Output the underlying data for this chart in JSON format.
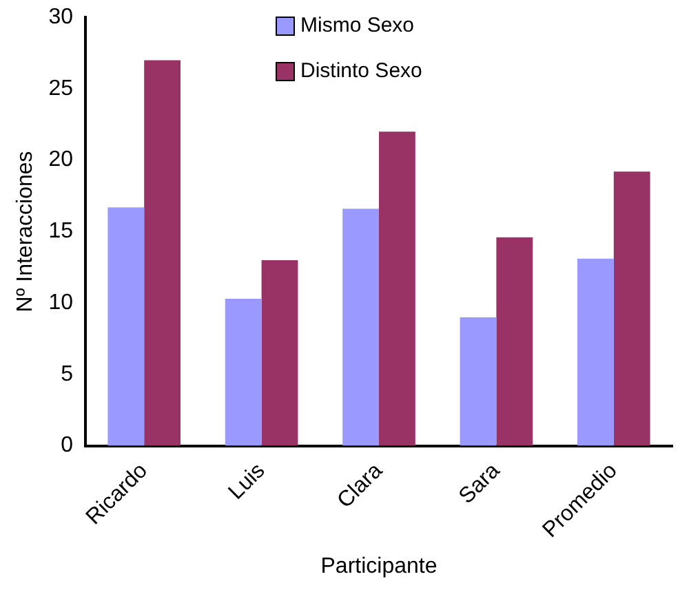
{
  "chart_data": {
    "type": "bar",
    "xlabel": "Participante",
    "ylabel": "Nº Interacciones",
    "categories": [
      "Ricardo",
      "Luis",
      "Clara",
      "Sara",
      "Promedio"
    ],
    "series": [
      {
        "name": "Mismo Sexo",
        "color": "#9999ff",
        "values": [
          16.7,
          10.3,
          16.6,
          9,
          13.1
        ]
      },
      {
        "name": "Distinto Sexo",
        "color": "#993366",
        "values": [
          27,
          13,
          22,
          14.6,
          19.2
        ]
      }
    ],
    "ylim": [
      0,
      30
    ],
    "yticks": [
      0,
      5,
      10,
      15,
      20,
      25,
      30
    ],
    "grid": false,
    "legend": "top"
  }
}
